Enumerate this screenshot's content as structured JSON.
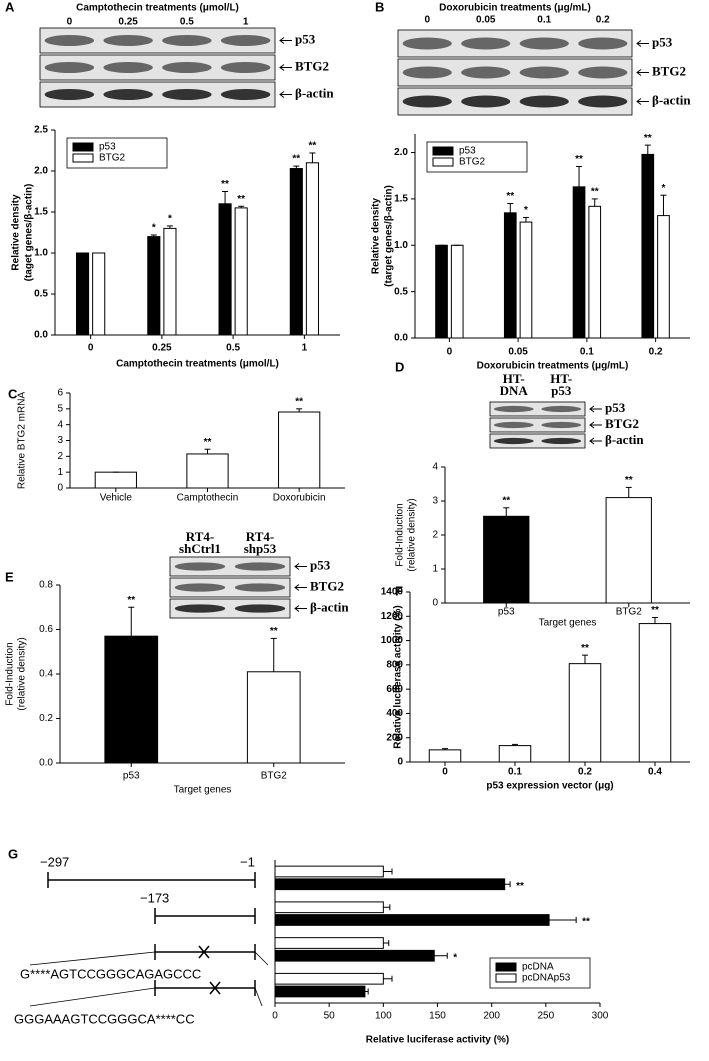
{
  "chart_data": [
    {
      "panel": "A",
      "type": "bar",
      "blot": {
        "header": "Camptothecin  treatments (μmol/L)",
        "lanes": [
          "0",
          "0.25",
          "0.5",
          "1"
        ],
        "rows": [
          "p53",
          "BTG2",
          "β-actin"
        ]
      },
      "categories": [
        "0",
        "0.25",
        "0.5",
        "1"
      ],
      "series": [
        {
          "name": "p53",
          "color": "#000000",
          "values": [
            1.0,
            1.2,
            1.6,
            2.03
          ],
          "errors": [
            0,
            0.02,
            0.15,
            0.03
          ],
          "significance": [
            null,
            "*",
            "**",
            "**"
          ]
        },
        {
          "name": "BTG2",
          "color": "#ffffff",
          "values": [
            1.0,
            1.3,
            1.55,
            2.1
          ],
          "errors": [
            0,
            0.03,
            0.02,
            0.12
          ],
          "significance": [
            null,
            "*",
            "**",
            "**"
          ]
        }
      ],
      "ylim": [
        0,
        2.5
      ],
      "yticks": [
        {
          "value": 0,
          "label": "0.0"
        },
        {
          "value": 0.5,
          "label": "0.5"
        },
        {
          "value": 1,
          "label": "1.0"
        },
        {
          "value": 1.5,
          "label": "1.5"
        },
        {
          "value": 2,
          "label": "2.0"
        },
        {
          "value": 2.5,
          "label": "2.5"
        }
      ],
      "ylabel": [
        "Relative density",
        "(taget genes/β-actin)"
      ],
      "xlabel": "Camptothecin treatments (μmol/L)",
      "legend": "upper left"
    },
    {
      "panel": "B",
      "type": "bar",
      "blot": {
        "header": "Doxorubicin  treatments  (μg/mL)",
        "lanes": [
          "0",
          "0.05",
          "0.1",
          "0.2"
        ],
        "rows": [
          "p53",
          "BTG2",
          "β-actin"
        ]
      },
      "categories": [
        "0",
        "0.05",
        "0.1",
        "0.2"
      ],
      "series": [
        {
          "name": "p53",
          "color": "#000000",
          "values": [
            1.0,
            1.35,
            1.63,
            1.98
          ],
          "errors": [
            0,
            0.1,
            0.22,
            0.1
          ],
          "significance": [
            null,
            "**",
            "**",
            "**"
          ]
        },
        {
          "name": "BTG2",
          "color": "#ffffff",
          "values": [
            1.0,
            1.25,
            1.42,
            1.32
          ],
          "errors": [
            0,
            0.05,
            0.08,
            0.22
          ],
          "significance": [
            null,
            "*",
            "**",
            "*"
          ]
        }
      ],
      "ylim": [
        0,
        2.2
      ],
      "yticks": [
        {
          "value": 0,
          "label": "0.0"
        },
        {
          "value": 0.5,
          "label": "0.5"
        },
        {
          "value": 1,
          "label": "1.0"
        },
        {
          "value": 1.5,
          "label": "1.5"
        },
        {
          "value": 2,
          "label": "2.0"
        }
      ],
      "ylabel": [
        "Relative density",
        "(target genes/β-actin)"
      ],
      "xlabel": "Doxorubicin  treatments (μg/mL)",
      "legend": "upper left"
    },
    {
      "panel": "C",
      "type": "bar",
      "categories": [
        "Vehicle",
        "Camptothecin",
        "Doxorubicin"
      ],
      "values": [
        1,
        2.15,
        4.8
      ],
      "errors": [
        0,
        0.3,
        0.2
      ],
      "significance": [
        null,
        "**",
        "**"
      ],
      "color": "#ffffff",
      "ylim": [
        0,
        6
      ],
      "yticks": [
        0,
        1,
        2,
        3,
        4,
        5,
        6
      ],
      "ylabel": "Relative BTG2 mRNA"
    },
    {
      "panel": "D",
      "type": "bar",
      "blot": {
        "lanes": [
          [
            "HT-",
            "DNA"
          ],
          [
            "HT-",
            "p53"
          ]
        ],
        "rows": [
          "p53",
          "BTG2",
          "β-actin"
        ]
      },
      "categories": [
        "p53",
        "BTG2"
      ],
      "values": [
        2.55,
        3.1
      ],
      "errors": [
        0.25,
        0.3
      ],
      "significance": [
        "**",
        "**"
      ],
      "colors": [
        "#000000",
        "#ffffff"
      ],
      "ylim": [
        0,
        4
      ],
      "yticks": [
        0,
        1,
        2,
        3,
        4
      ],
      "ylabel": [
        "Fold-Induction",
        "(relative density)"
      ],
      "xlabel": "Target genes"
    },
    {
      "panel": "E",
      "type": "bar",
      "blot": {
        "lanes": [
          [
            "RT4-",
            "shCtrl1"
          ],
          [
            "RT4-",
            "shp53"
          ]
        ],
        "rows": [
          "p53",
          "BTG2",
          "β-actin"
        ]
      },
      "categories": [
        "p53",
        "BTG2"
      ],
      "values": [
        0.57,
        0.41
      ],
      "errors": [
        0.13,
        0.15
      ],
      "significance": [
        "**",
        "**"
      ],
      "colors": [
        "#000000",
        "#ffffff"
      ],
      "ylim": [
        0,
        0.8
      ],
      "yticks": [
        {
          "value": 0,
          "label": "0.0"
        },
        {
          "value": 0.2,
          "label": "0.2"
        },
        {
          "value": 0.4,
          "label": "0.4"
        },
        {
          "value": 0.6,
          "label": "0.6"
        },
        {
          "value": 0.8,
          "label": "0.8"
        }
      ],
      "ylabel": [
        "Fold-Induction",
        "(relative density)"
      ],
      "xlabel": "Target genes"
    },
    {
      "panel": "F",
      "type": "bar",
      "categories": [
        "0",
        "0.1",
        "0.2",
        "0.4"
      ],
      "values": [
        100,
        135,
        810,
        1140
      ],
      "errors": [
        10,
        10,
        70,
        50
      ],
      "significance": [
        null,
        null,
        "**",
        "**"
      ],
      "color": "#ffffff",
      "ylim": [
        0,
        1400
      ],
      "yticks": [
        0,
        200,
        400,
        600,
        800,
        1000,
        1200,
        1400
      ],
      "ylabel": "Relative luciferase activity (%)",
      "xlabel": "p53 expression vector (μg)"
    },
    {
      "panel": "G",
      "type": "hbar",
      "diagram": {
        "positions": [
          "−297",
          "−1",
          "−173"
        ],
        "sequences": [
          "G****AGTCCGGGCAGAGCCC",
          "GGGAAAGTCCGGGCA****CC"
        ]
      },
      "series": [
        {
          "name": "pcDNA",
          "color": "#000000",
          "values": [
            212,
            253,
            147,
            83
          ],
          "errors": [
            5,
            25,
            12,
            3
          ],
          "significance": [
            "**",
            "**",
            "*",
            null
          ]
        },
        {
          "name": "pcDNAp53",
          "color": "#ffffff",
          "values": [
            100,
            100,
            100,
            100
          ],
          "errors": [
            8,
            6,
            5,
            8
          ],
          "significance": [
            null,
            null,
            null,
            null
          ]
        }
      ],
      "xlim": [
        0,
        300
      ],
      "xticks": [
        0,
        50,
        100,
        150,
        200,
        250,
        300
      ],
      "xlabel": "Relative luciferase activity (%)",
      "legend": "lower right"
    }
  ]
}
